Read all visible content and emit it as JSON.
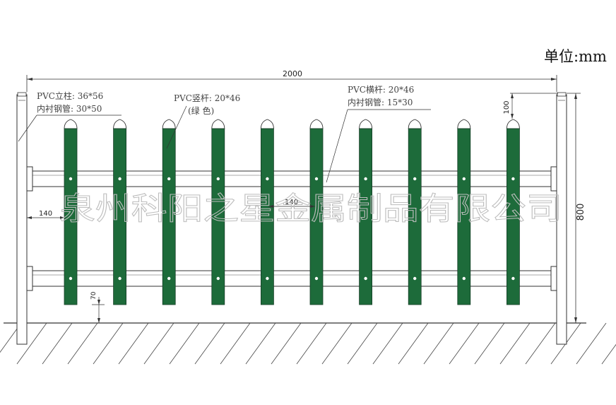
{
  "unit_label": "单位:mm",
  "dimensions": {
    "total_width": "2000",
    "height": "800",
    "top_offset": "100",
    "rail_spacing": "140",
    "rail_left": "140",
    "bottom_gap": "70"
  },
  "annotations": {
    "post_line1": "PVC立柱: 36*56",
    "post_line2": "内衬钢管: 30*50",
    "picket_line1": "PVC竖杆: 20*46",
    "picket_line2": "(绿 色)",
    "rail_line1": "PVC横杆: 20*46",
    "rail_line2": "内衬钢管: 15*30"
  },
  "watermark": "泉州科阳之星金属制品有限公司",
  "colors": {
    "picket_green": "#1d6b3a",
    "line": "#333333"
  },
  "pickets": {
    "count": 10
  }
}
